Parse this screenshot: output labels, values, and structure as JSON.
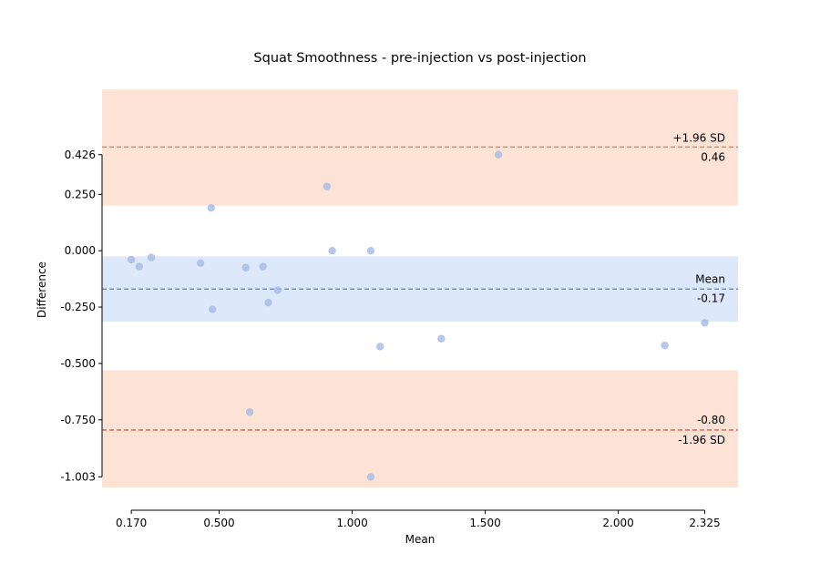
{
  "chart_data": {
    "type": "scatter",
    "title": "Squat Smoothness - pre-injection vs post-injection",
    "xlabel": "Mean",
    "ylabel": "Difference",
    "xlim": [
      0.06,
      2.45
    ],
    "ylim": [
      -1.07,
      0.72
    ],
    "xticks": [
      "0.170",
      "0.500",
      "1.000",
      "1.500",
      "2.000",
      "2.325"
    ],
    "xtick_values": [
      0.17,
      0.5,
      1.0,
      1.5,
      2.0,
      2.325
    ],
    "yticks": [
      "0.426",
      "0.250",
      "0.000",
      "-0.250",
      "-0.500",
      "-0.750",
      "-1.003"
    ],
    "ytick_values": [
      0.426,
      0.25,
      0.0,
      -0.25,
      -0.5,
      -0.75,
      -1.003
    ],
    "mean_line": {
      "value": -0.17,
      "label": "Mean",
      "value_label": "-0.17",
      "color": "#4f81bd"
    },
    "upper_loa": {
      "value": 0.46,
      "label": "+1.96 SD",
      "value_label": "0.46",
      "color": "#e07b54"
    },
    "lower_loa": {
      "value": -0.795,
      "label": "-1.96 SD",
      "value_label": "-0.80",
      "color": "#d65f4a"
    },
    "bands": [
      {
        "name": "upper-loa-ci",
        "y0": 0.2,
        "y1": 0.715,
        "color": "#fde3d6"
      },
      {
        "name": "mean-ci",
        "y0": -0.025,
        "y1": -0.315,
        "color": "#dde8fb"
      },
      {
        "name": "lower-loa-ci",
        "y0": -0.53,
        "y1": -1.05,
        "color": "#fde3d6"
      }
    ],
    "point_color": "#a9bde3",
    "points": [
      {
        "x": 0.17,
        "y": -0.04
      },
      {
        "x": 0.2,
        "y": -0.07
      },
      {
        "x": 0.245,
        "y": -0.03
      },
      {
        "x": 0.43,
        "y": -0.055
      },
      {
        "x": 0.47,
        "y": 0.19
      },
      {
        "x": 0.475,
        "y": -0.26
      },
      {
        "x": 0.6,
        "y": -0.075
      },
      {
        "x": 0.615,
        "y": -0.715
      },
      {
        "x": 0.665,
        "y": -0.07
      },
      {
        "x": 0.685,
        "y": -0.23
      },
      {
        "x": 0.72,
        "y": -0.175
      },
      {
        "x": 0.905,
        "y": 0.285
      },
      {
        "x": 0.925,
        "y": 0.0
      },
      {
        "x": 1.07,
        "y": 0.0
      },
      {
        "x": 1.07,
        "y": -1.003
      },
      {
        "x": 1.105,
        "y": -0.425
      },
      {
        "x": 1.335,
        "y": -0.39
      },
      {
        "x": 1.55,
        "y": 0.426
      },
      {
        "x": 2.175,
        "y": -0.42
      },
      {
        "x": 2.325,
        "y": -0.32
      }
    ]
  }
}
